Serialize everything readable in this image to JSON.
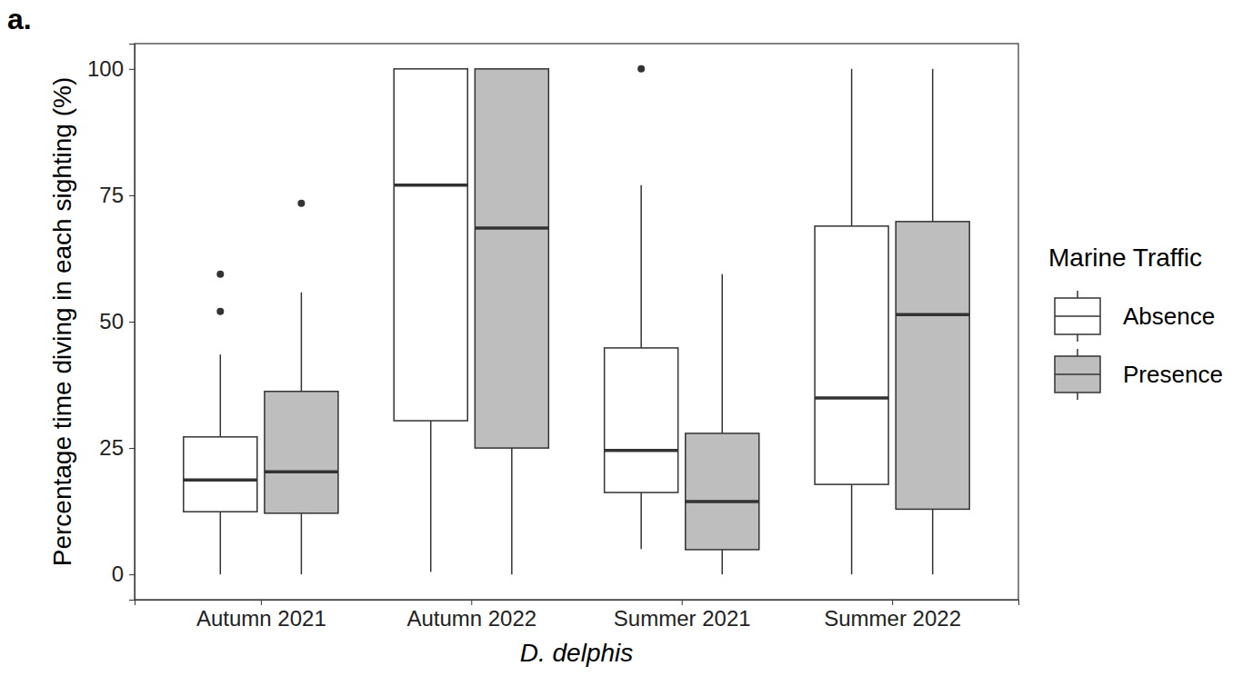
{
  "chart_data": {
    "type": "box",
    "title": "a.",
    "y_label": "Percentage time diving in each sighting (%)",
    "x_label": "D. delphis",
    "legend_title": "Marine Traffic",
    "legend": "right",
    "grid": false,
    "categories": [
      "Autumn 2021",
      "Autumn 2022",
      "Summer 2021",
      "Summer 2022"
    ],
    "ylim": [
      -5,
      105
    ],
    "yticks": [
      0,
      25,
      50,
      75,
      100
    ],
    "series": [
      {
        "name": "Absence",
        "color": "#ffffff",
        "min": [
          0,
          0.5,
          5,
          0
        ],
        "q1": [
          12.4,
          30.4,
          16.2,
          17.8
        ],
        "median": [
          18.7,
          77,
          24.5,
          34.9
        ],
        "q3": [
          27.2,
          100,
          44.8,
          68.9
        ],
        "max": [
          43.5,
          100,
          77,
          100
        ],
        "outliers": [
          [
            52,
            59.4
          ],
          [],
          [
            100
          ],
          []
        ]
      },
      {
        "name": "Presence",
        "color": "#bebebe",
        "min": [
          0,
          0,
          0,
          0
        ],
        "q1": [
          12.1,
          25,
          4.9,
          12.9
        ],
        "median": [
          20.3,
          68.5,
          14.4,
          51.4
        ],
        "q3": [
          36.2,
          100,
          27.9,
          69.8
        ],
        "max": [
          55.8,
          100,
          59.4,
          100
        ],
        "outliers": [
          [
            73.4
          ],
          [],
          [],
          []
        ]
      }
    ]
  }
}
